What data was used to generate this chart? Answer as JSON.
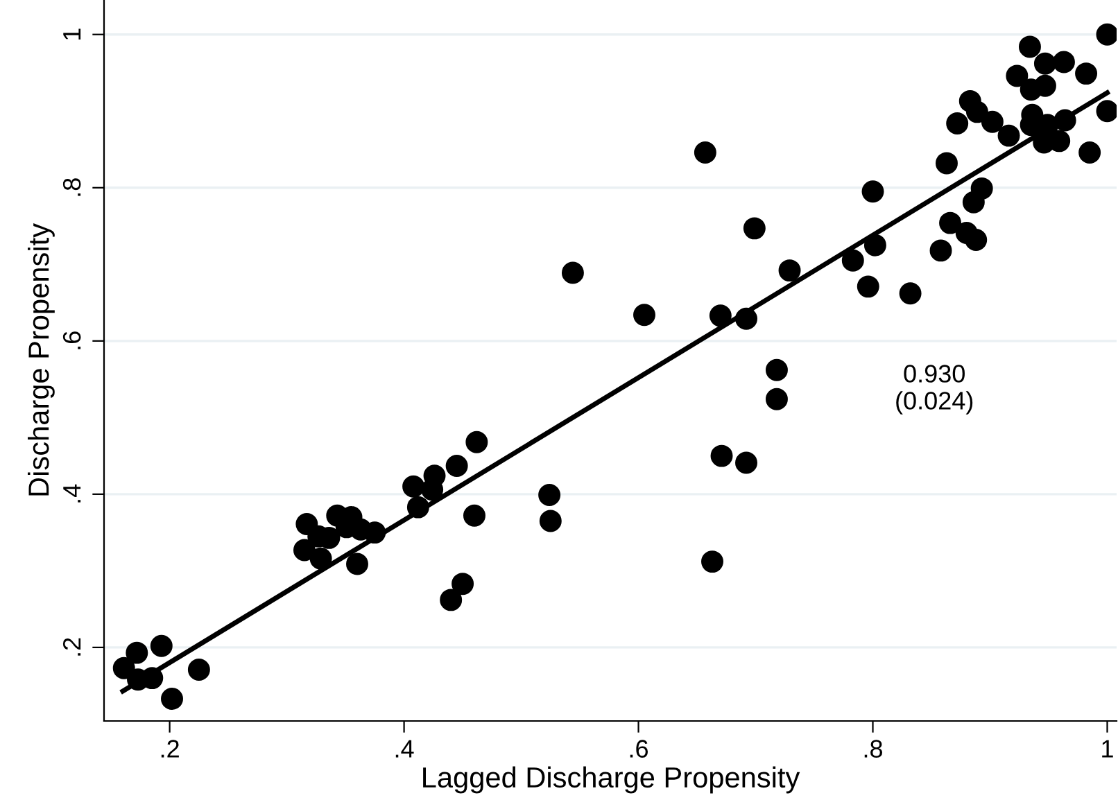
{
  "chart_data": {
    "type": "scatter",
    "xlabel": "Lagged Discharge Propensity",
    "ylabel": "Discharge Propensity",
    "xlim": [
      0.144,
      1.008
    ],
    "ylim": [
      0.104,
      1.045
    ],
    "xticks": [
      {
        "value": 0.2,
        "label": ".2"
      },
      {
        "value": 0.4,
        "label": ".4"
      },
      {
        "value": 0.6,
        "label": ".6"
      },
      {
        "value": 0.8,
        "label": ".8"
      },
      {
        "value": 1,
        "label": "1"
      }
    ],
    "yticks": [
      {
        "value": 0.2,
        "label": ".2"
      },
      {
        "value": 0.4,
        "label": ".4"
      },
      {
        "value": 0.6,
        "label": ".6"
      },
      {
        "value": 0.8,
        "label": ".8"
      },
      {
        "value": 1,
        "label": "1"
      }
    ],
    "grid": "y",
    "legend": false,
    "marker": "circle",
    "annotations": [
      "0.930\n(0.024)"
    ],
    "series": [
      {
        "color": "#000000",
        "x": [
          0.161,
          0.172,
          0.173,
          0.185,
          0.193,
          0.202,
          0.225,
          0.317,
          0.315,
          0.329,
          0.327,
          0.336,
          0.343,
          0.355,
          0.351,
          0.363,
          0.375,
          0.36,
          0.408,
          0.412,
          0.426,
          0.424,
          0.445,
          0.462,
          0.46,
          0.44,
          0.45,
          0.524,
          0.525,
          0.544,
          0.605,
          0.67,
          0.692,
          0.699,
          0.657,
          0.729,
          0.718,
          0.718,
          0.671,
          0.692,
          0.663,
          0.783,
          0.802,
          0.796,
          0.832,
          0.858,
          0.8,
          0.863,
          0.893,
          0.886,
          0.866,
          0.88,
          0.888,
          0.872,
          0.883,
          0.889,
          0.902,
          0.916,
          0.923,
          0.934,
          0.935,
          0.947,
          0.947,
          0.963,
          0.982,
          1.0,
          1.0,
          0.936,
          0.935,
          0.949,
          0.964,
          0.946,
          0.959,
          0.985
        ],
        "values": [
          0.173,
          0.193,
          0.158,
          0.16,
          0.202,
          0.133,
          0.171,
          0.361,
          0.327,
          0.316,
          0.345,
          0.343,
          0.372,
          0.37,
          0.357,
          0.354,
          0.35,
          0.309,
          0.41,
          0.383,
          0.424,
          0.406,
          0.437,
          0.468,
          0.372,
          0.262,
          0.283,
          0.399,
          0.365,
          0.689,
          0.634,
          0.633,
          0.629,
          0.747,
          0.846,
          0.692,
          0.562,
          0.524,
          0.45,
          0.441,
          0.312,
          0.705,
          0.725,
          0.671,
          0.662,
          0.718,
          0.795,
          0.832,
          0.799,
          0.781,
          0.754,
          0.741,
          0.732,
          0.884,
          0.913,
          0.899,
          0.886,
          0.868,
          0.946,
          0.984,
          0.928,
          0.933,
          0.962,
          0.964,
          0.949,
          1.0,
          0.9,
          0.895,
          0.882,
          0.882,
          0.888,
          0.859,
          0.861,
          0.846
        ]
      },
      {
        "type": "line",
        "marker": "none",
        "color": "#000000",
        "x": [
          0.16,
          1.0
        ],
        "values": [
          0.143,
          0.924
        ]
      }
    ]
  }
}
